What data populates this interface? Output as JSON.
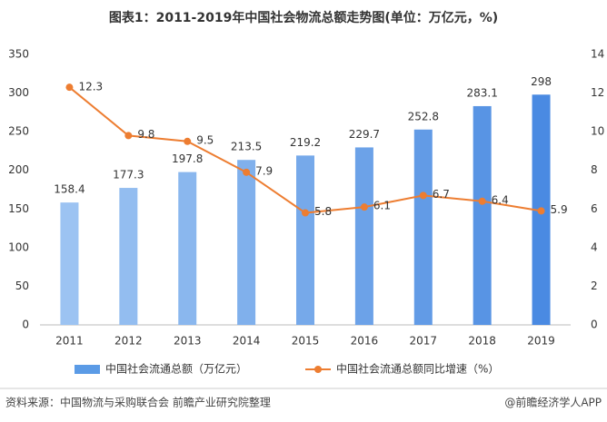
{
  "chart_data": {
    "type": "bar",
    "title": "图表1：2011-2019年中国社会物流总额走势图(单位：万亿元，%)",
    "categories": [
      "2011",
      "2012",
      "2013",
      "2014",
      "2015",
      "2016",
      "2017",
      "2018",
      "2019"
    ],
    "series": [
      {
        "name": "中国社会流通总额（万亿元）",
        "type": "bar",
        "color": "#5b9be6",
        "colors": [
          "#9cc3f2",
          "#93bdf0",
          "#8ab7ee",
          "#80b0ec",
          "#76a9ea",
          "#6ca2e8",
          "#629be6",
          "#5894e4",
          "#4a8ae2"
        ],
        "values": [
          158.4,
          177.3,
          197.8,
          213.5,
          219.2,
          229.7,
          252.8,
          283.1,
          298
        ]
      },
      {
        "name": "中国社会流通总额同比增速（%）",
        "type": "line",
        "axis": "y2",
        "color": "#ed7d31",
        "values": [
          12.3,
          9.8,
          9.5,
          7.9,
          5.8,
          6.1,
          6.7,
          6.4,
          5.9
        ]
      }
    ],
    "ylim": [
      0,
      350
    ],
    "yticks": [
      0,
      50,
      100,
      150,
      200,
      250,
      300,
      350
    ],
    "y2lim": [
      0,
      14
    ],
    "y2ticks": [
      0,
      2,
      4,
      6,
      8,
      10,
      12,
      14
    ],
    "legend": "bottom",
    "source": "资料来源：中国物流与采购联合会 前瞻产业研究院整理",
    "credit": "@前瞻经济学人APP"
  }
}
